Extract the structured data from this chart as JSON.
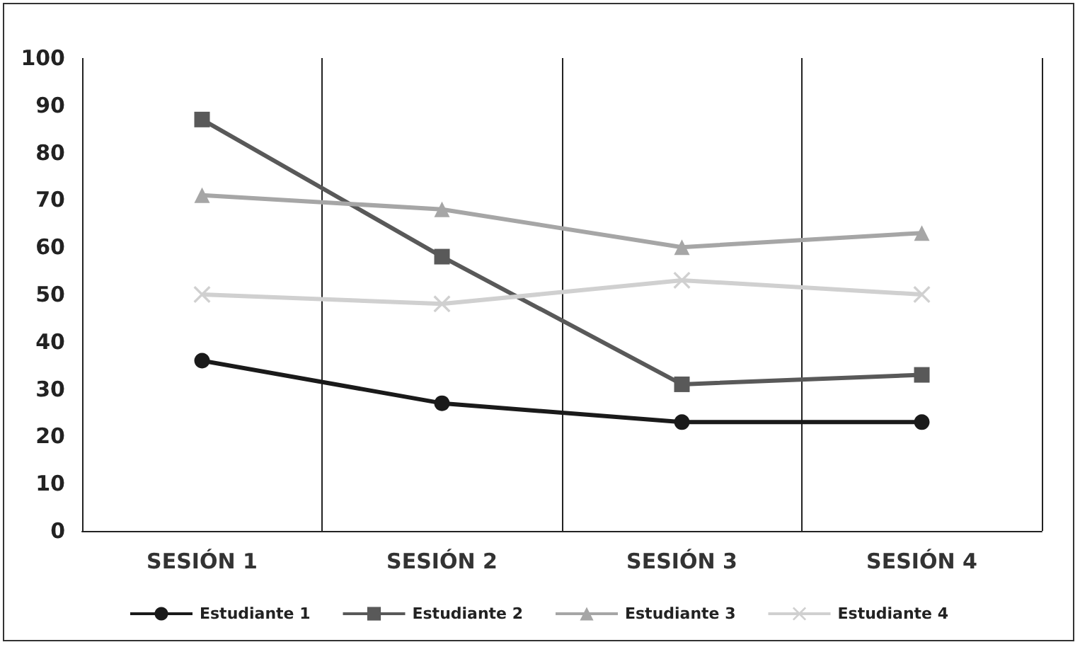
{
  "chart_data": {
    "type": "line",
    "categories": [
      "SESIÓN 1",
      "SESIÓN 2",
      "SESIÓN 3",
      "SESIÓN 4"
    ],
    "series": [
      {
        "name": "Estudiante 1",
        "color": "#1a1a1a",
        "marker": "circle",
        "values": [
          36,
          27,
          23,
          23
        ]
      },
      {
        "name": "Estudiante 2",
        "color": "#595959",
        "marker": "square",
        "values": [
          87,
          58,
          31,
          33
        ]
      },
      {
        "name": "Estudiante 3",
        "color": "#a6a6a6",
        "marker": "triangle",
        "values": [
          71,
          68,
          60,
          63
        ]
      },
      {
        "name": "Estudiante 4",
        "color": "#d0d0d0",
        "marker": "cross",
        "values": [
          50,
          48,
          53,
          50
        ]
      }
    ],
    "ylim": [
      0,
      100
    ],
    "yticks": [
      0,
      10,
      20,
      30,
      40,
      50,
      60,
      70,
      80,
      90,
      100
    ],
    "grid": "x",
    "legend": "bottom"
  }
}
